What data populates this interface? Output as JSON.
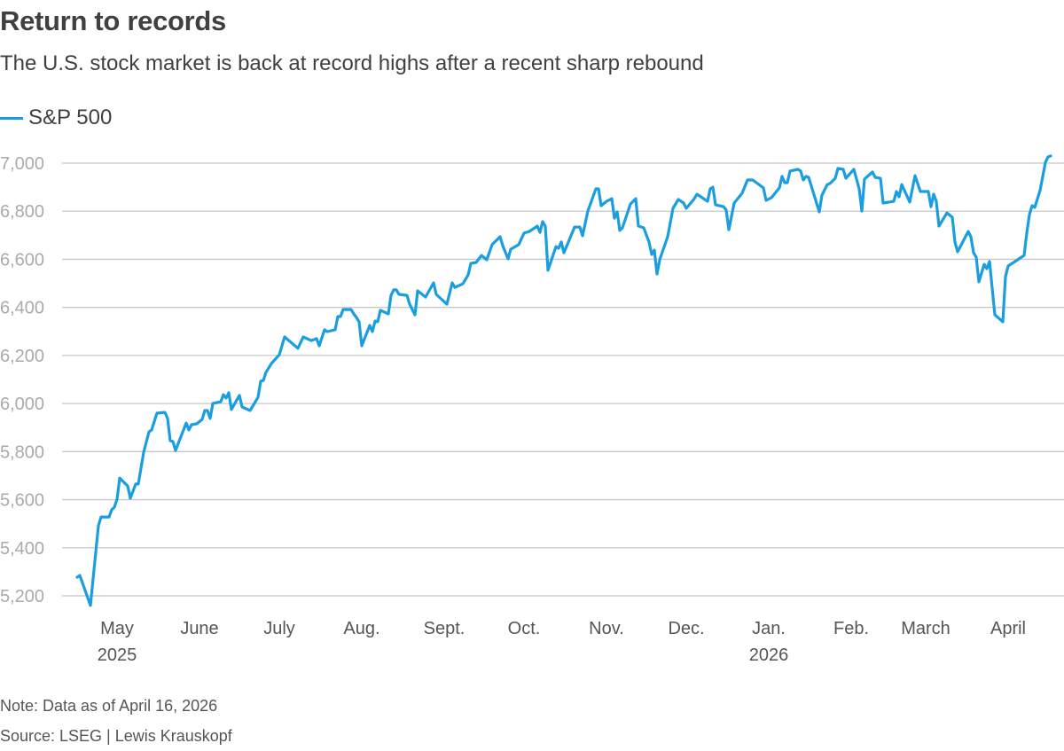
{
  "header": {
    "title": "Return to records",
    "subtitle": "The U.S. stock market is back at record highs after a recent sharp rebound"
  },
  "footer": {
    "note": "Note: Data as of April 16, 2026",
    "source": "Source: LSEG | Lewis Krauskopf"
  },
  "colors": {
    "line": "#1a9ee0",
    "grid": "#c8c8c8",
    "tick_y": "#aaaaaa",
    "tick_x": "#555555"
  },
  "chart_data": {
    "type": "line",
    "title": "Return to records",
    "subtitle": "The U.S. stock market is back at record highs after a recent sharp rebound",
    "xlabel": "",
    "ylabel": "",
    "x_unit": "days since start of series (late April 2025) through April 16, 2026",
    "xlim": [
      0,
      366
    ],
    "ylim": [
      5120,
      7060
    ],
    "grid": true,
    "legend": {
      "placement": "top-left",
      "entries": [
        "S&P 500"
      ]
    },
    "yticks": [
      {
        "value": 5200,
        "label": "5,200"
      },
      {
        "value": 5400,
        "label": "5,400"
      },
      {
        "value": 5600,
        "label": "5,600"
      },
      {
        "value": 5800,
        "label": "5,800"
      },
      {
        "value": 6000,
        "label": "6,000"
      },
      {
        "value": 6200,
        "label": "6,200"
      },
      {
        "value": 6400,
        "label": "6,400"
      },
      {
        "value": 6600,
        "label": "6,600"
      },
      {
        "value": 6800,
        "label": "6,800"
      },
      {
        "value": 7000,
        "label": "7,000"
      }
    ],
    "xticks": [
      {
        "x": 15,
        "label": "May",
        "sublabel": "2025"
      },
      {
        "x": 46,
        "label": "June"
      },
      {
        "x": 76,
        "label": "July"
      },
      {
        "x": 107,
        "label": "Aug."
      },
      {
        "x": 138,
        "label": "Sept."
      },
      {
        "x": 168,
        "label": "Oct."
      },
      {
        "x": 199,
        "label": "Nov."
      },
      {
        "x": 229,
        "label": "Dec."
      },
      {
        "x": 260,
        "label": "Jan.",
        "sublabel": "2026"
      },
      {
        "x": 291,
        "label": "Feb."
      },
      {
        "x": 319,
        "label": "March"
      },
      {
        "x": 350,
        "label": "April"
      }
    ],
    "series": [
      {
        "name": "S&P 500",
        "points": [
          [
            0,
            5277
          ],
          [
            1,
            5285
          ],
          [
            5,
            5160
          ],
          [
            8,
            5492
          ],
          [
            9,
            5528
          ],
          [
            12,
            5528
          ],
          [
            13,
            5558
          ],
          [
            14,
            5569
          ],
          [
            15,
            5602
          ],
          [
            16,
            5690
          ],
          [
            19,
            5657
          ],
          [
            20,
            5606
          ],
          [
            22,
            5665
          ],
          [
            23,
            5665
          ],
          [
            25,
            5797
          ],
          [
            27,
            5882
          ],
          [
            28,
            5890
          ],
          [
            30,
            5960
          ],
          [
            33,
            5963
          ],
          [
            34,
            5938
          ],
          [
            35,
            5845
          ],
          [
            36,
            5842
          ],
          [
            37,
            5805
          ],
          [
            41,
            5919
          ],
          [
            42,
            5890
          ],
          [
            43,
            5912
          ],
          [
            45,
            5916
          ],
          [
            47,
            5934
          ],
          [
            48,
            5971
          ],
          [
            49,
            5971
          ],
          [
            50,
            5938
          ],
          [
            51,
            6000
          ],
          [
            54,
            6008
          ],
          [
            55,
            6037
          ],
          [
            56,
            6023
          ],
          [
            57,
            6045
          ],
          [
            58,
            5975
          ],
          [
            61,
            6034
          ],
          [
            62,
            5986
          ],
          [
            65,
            5971
          ],
          [
            68,
            6026
          ],
          [
            69,
            6093
          ],
          [
            70,
            6096
          ],
          [
            71,
            6130
          ],
          [
            73,
            6166
          ],
          [
            76,
            6203
          ],
          [
            78,
            6277
          ],
          [
            83,
            6230
          ],
          [
            85,
            6277
          ],
          [
            88,
            6262
          ],
          [
            90,
            6270
          ],
          [
            91,
            6240
          ],
          [
            93,
            6307
          ],
          [
            94,
            6299
          ],
          [
            97,
            6307
          ],
          [
            98,
            6362
          ],
          [
            99,
            6362
          ],
          [
            100,
            6391
          ],
          [
            103,
            6391
          ],
          [
            104,
            6373
          ],
          [
            105,
            6358
          ],
          [
            106,
            6340
          ],
          [
            107,
            6240
          ],
          [
            110,
            6325
          ],
          [
            111,
            6299
          ],
          [
            112,
            6343
          ],
          [
            113,
            6340
          ],
          [
            114,
            6388
          ],
          [
            117,
            6373
          ],
          [
            118,
            6450
          ],
          [
            119,
            6473
          ],
          [
            120,
            6473
          ],
          [
            121,
            6454
          ],
          [
            124,
            6450
          ],
          [
            125,
            6413
          ],
          [
            127,
            6369
          ],
          [
            128,
            6469
          ],
          [
            131,
            6443
          ],
          [
            134,
            6502
          ],
          [
            135,
            6454
          ],
          [
            139,
            6413
          ],
          [
            141,
            6502
          ],
          [
            142,
            6483
          ],
          [
            145,
            6498
          ],
          [
            147,
            6535
          ],
          [
            148,
            6583
          ],
          [
            150,
            6587
          ],
          [
            152,
            6616
          ],
          [
            154,
            6598
          ],
          [
            156,
            6661
          ],
          [
            159,
            6694
          ],
          [
            160,
            6657
          ],
          [
            162,
            6602
          ],
          [
            163,
            6642
          ],
          [
            166,
            6661
          ],
          [
            168,
            6709
          ],
          [
            170,
            6716
          ],
          [
            173,
            6738
          ],
          [
            174,
            6712
          ],
          [
            175,
            6757
          ],
          [
            176,
            6738
          ],
          [
            177,
            6554
          ],
          [
            180,
            6653
          ],
          [
            181,
            6646
          ],
          [
            182,
            6672
          ],
          [
            183,
            6627
          ],
          [
            187,
            6734
          ],
          [
            189,
            6734
          ],
          [
            190,
            6698
          ],
          [
            192,
            6801
          ],
          [
            195,
            6893
          ],
          [
            196,
            6893
          ],
          [
            197,
            6823
          ],
          [
            199,
            6841
          ],
          [
            201,
            6852
          ],
          [
            202,
            6771
          ],
          [
            203,
            6797
          ],
          [
            204,
            6720
          ],
          [
            205,
            6731
          ],
          [
            208,
            6830
          ],
          [
            210,
            6852
          ],
          [
            211,
            6738
          ],
          [
            213,
            6731
          ],
          [
            215,
            6672
          ],
          [
            216,
            6620
          ],
          [
            217,
            6638
          ],
          [
            218,
            6539
          ],
          [
            219,
            6598
          ],
          [
            222,
            6694
          ],
          [
            224,
            6812
          ],
          [
            226,
            6849
          ],
          [
            228,
            6834
          ],
          [
            229,
            6812
          ],
          [
            232,
            6852
          ],
          [
            233,
            6871
          ],
          [
            237,
            6841
          ],
          [
            238,
            6893
          ],
          [
            239,
            6900
          ],
          [
            240,
            6827
          ],
          [
            243,
            6819
          ],
          [
            244,
            6805
          ],
          [
            245,
            6723
          ],
          [
            247,
            6834
          ],
          [
            250,
            6875
          ],
          [
            252,
            6930
          ],
          [
            254,
            6930
          ],
          [
            258,
            6897
          ],
          [
            259,
            6845
          ],
          [
            261,
            6856
          ],
          [
            264,
            6897
          ],
          [
            265,
            6945
          ],
          [
            266,
            6919
          ],
          [
            267,
            6919
          ],
          [
            268,
            6967
          ],
          [
            271,
            6974
          ],
          [
            272,
            6967
          ],
          [
            273,
            6930
          ],
          [
            274,
            6945
          ],
          [
            275,
            6941
          ],
          [
            279,
            6797
          ],
          [
            280,
            6867
          ],
          [
            282,
            6911
          ],
          [
            283,
            6915
          ],
          [
            285,
            6937
          ],
          [
            286,
            6978
          ],
          [
            288,
            6974
          ],
          [
            289,
            6937
          ],
          [
            292,
            6974
          ],
          [
            294,
            6893
          ],
          [
            295,
            6801
          ],
          [
            296,
            6934
          ],
          [
            299,
            6963
          ],
          [
            300,
            6941
          ],
          [
            302,
            6937
          ],
          [
            303,
            6834
          ],
          [
            307,
            6841
          ],
          [
            308,
            6882
          ],
          [
            309,
            6860
          ],
          [
            310,
            6911
          ],
          [
            313,
            6838
          ],
          [
            315,
            6948
          ],
          [
            317,
            6882
          ],
          [
            320,
            6882
          ],
          [
            321,
            6819
          ],
          [
            322,
            6871
          ],
          [
            323,
            6841
          ],
          [
            324,
            6738
          ],
          [
            327,
            6793
          ],
          [
            329,
            6775
          ],
          [
            330,
            6672
          ],
          [
            331,
            6631
          ],
          [
            335,
            6716
          ],
          [
            336,
            6694
          ],
          [
            337,
            6627
          ],
          [
            338,
            6609
          ],
          [
            339,
            6506
          ],
          [
            341,
            6579
          ],
          [
            342,
            6561
          ],
          [
            343,
            6591
          ],
          [
            345,
            6369
          ],
          [
            348,
            6340
          ],
          [
            349,
            6528
          ],
          [
            350,
            6572
          ],
          [
            356,
            6616
          ],
          [
            357,
            6709
          ],
          [
            358,
            6786
          ],
          [
            359,
            6823
          ],
          [
            360,
            6816
          ],
          [
            362,
            6886
          ],
          [
            364,
            7003
          ],
          [
            365,
            7026
          ],
          [
            366,
            7030
          ]
        ]
      }
    ]
  }
}
